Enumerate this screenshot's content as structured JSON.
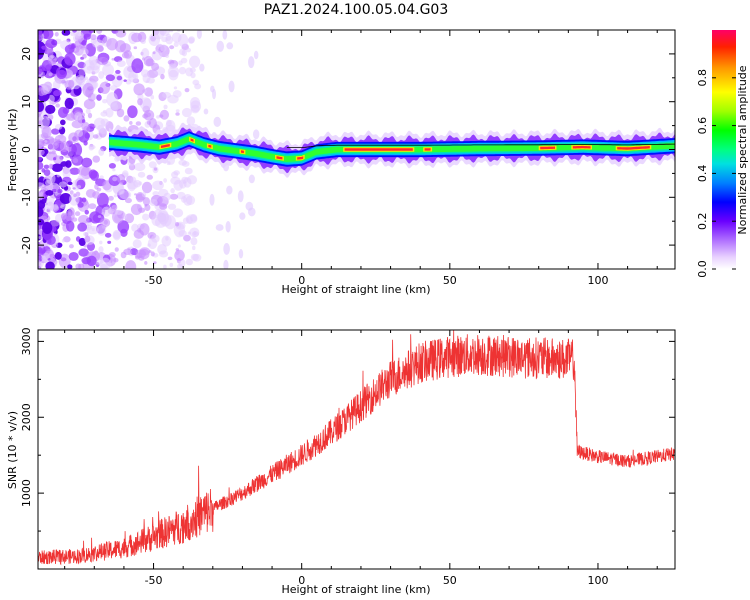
{
  "chart_data": [
    {
      "type": "heatmap",
      "title": "PAZ1.2024.100.05.04.G03",
      "xlabel": "Height of straight line (km)",
      "ylabel": "Frequency (Hz)",
      "xlim": [
        -89,
        126
      ],
      "ylim": [
        -25,
        25
      ],
      "xticks": [
        "-50",
        "0",
        "50",
        "100"
      ],
      "yticks": [
        "-20",
        "-10",
        "0",
        "10",
        "20"
      ],
      "colorbar": {
        "label": "Normalized spectral amplitude",
        "ticks": [
          "0.0",
          "0.2",
          "0.4",
          "0.6",
          "0.8"
        ],
        "range": [
          0,
          1
        ]
      },
      "ridge": {
        "x": [
          -65,
          -55,
          -48,
          -42,
          -38,
          -33,
          -28,
          -22,
          -16,
          -10,
          -5,
          0,
          5,
          12,
          20,
          40,
          60,
          80,
          95,
          110,
          126
        ],
        "y": [
          1.5,
          1.0,
          0.5,
          1.2,
          2.2,
          1.0,
          0.2,
          -0.3,
          -0.8,
          -1.5,
          -2.0,
          -1.8,
          -0.5,
          0.0,
          0.0,
          0.0,
          0.2,
          0.3,
          0.5,
          0.2,
          0.8
        ]
      },
      "noise_region_x": [
        -89,
        -35
      ]
    },
    {
      "type": "line",
      "title": "",
      "xlabel": "Height of straight line (km)",
      "ylabel": "SNR (10 * v/v)",
      "xlim": [
        -89,
        126
      ],
      "ylim": [
        0,
        3150
      ],
      "xticks": [
        "-50",
        "0",
        "50",
        "100"
      ],
      "yticks": [
        "1000",
        "2000",
        "3000"
      ],
      "series": [
        {
          "color": "#ee3333",
          "trend_x": [
            -89,
            -75,
            -60,
            -50,
            -40,
            -30,
            -20,
            -10,
            0,
            10,
            20,
            30,
            40,
            50,
            60,
            70,
            80,
            92,
            93,
            100,
            110,
            126
          ],
          "trend_y": [
            150,
            170,
            280,
            420,
            580,
            800,
            1000,
            1250,
            1500,
            1800,
            2150,
            2500,
            2720,
            2800,
            2830,
            2800,
            2780,
            2760,
            1550,
            1480,
            1420,
            1520
          ]
        }
      ]
    }
  ]
}
